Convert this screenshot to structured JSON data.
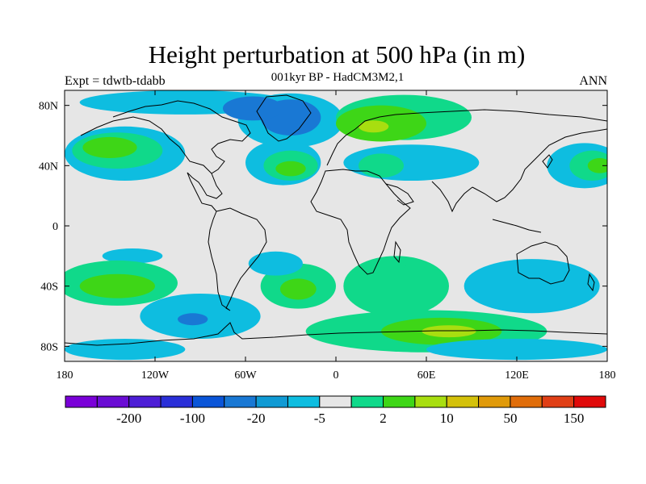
{
  "title": "Height perturbation at 500 hPa (in m)",
  "subtitle": "001kyr BP - HadCM3M2,1",
  "left_label": "Expt = tdwtb-tdabb",
  "right_label": "ANN",
  "map": {
    "projection": "cylindrical-equidistant",
    "lon_range": [
      -180,
      180
    ],
    "lat_range": [
      -90,
      90
    ],
    "lat_ticks": [
      {
        "value": 80,
        "label": "80N"
      },
      {
        "value": 40,
        "label": "40N"
      },
      {
        "value": 0,
        "label": "0"
      },
      {
        "value": -40,
        "label": "40S"
      },
      {
        "value": -80,
        "label": "80S"
      }
    ],
    "lon_ticks": [
      {
        "value": -180,
        "label": "180"
      },
      {
        "value": -120,
        "label": "120W"
      },
      {
        "value": -60,
        "label": "60W"
      },
      {
        "value": 0,
        "label": "0"
      },
      {
        "value": 60,
        "label": "60E"
      },
      {
        "value": 120,
        "label": "120E"
      },
      {
        "value": 180,
        "label": "180"
      }
    ],
    "background_color": "#e6e6e6"
  },
  "colorbar": {
    "colors": [
      "#7a00d8",
      "#6a0cd4",
      "#4d1ed6",
      "#2a2fd8",
      "#0a55d8",
      "#1978d4",
      "#109ad4",
      "#0ebde0",
      "#e6e6e6",
      "#10d98a",
      "#3ed617",
      "#a8de10",
      "#d4c10a",
      "#e09a0a",
      "#e06d0a",
      "#e03f16",
      "#e00a0a"
    ],
    "labels": [
      {
        "after_bin": 1,
        "text": "-200"
      },
      {
        "after_bin": 3,
        "text": "-100"
      },
      {
        "after_bin": 5,
        "text": "-20"
      },
      {
        "after_bin": 7,
        "text": "-5"
      },
      {
        "after_bin": 9,
        "text": "2"
      },
      {
        "after_bin": 11,
        "text": "10"
      },
      {
        "after_bin": 13,
        "text": "50"
      },
      {
        "after_bin": 15,
        "text": "150"
      }
    ]
  },
  "anomaly_regions": [
    {
      "label": "arctic-negative-band",
      "level": -5,
      "lon": -100,
      "lat": 82,
      "rlon": 70,
      "rlat": 8
    },
    {
      "label": "north-atlantic-negative",
      "level": -5,
      "lon": -30,
      "lat": 70,
      "rlon": 35,
      "rlat": 18
    },
    {
      "label": "north-atlantic-negative-core",
      "level": -20,
      "lon": -30,
      "lat": 72,
      "rlon": 20,
      "rlat": 12
    },
    {
      "label": "greenland-negative-core",
      "level": -20,
      "lon": -55,
      "lat": 78,
      "rlon": 20,
      "rlat": 8
    },
    {
      "label": "eurasia-positive",
      "level": 2,
      "lon": 45,
      "lat": 72,
      "rlon": 45,
      "rlat": 15
    },
    {
      "label": "eurasia-positive-core",
      "level": 10,
      "lon": 30,
      "lat": 68,
      "rlon": 30,
      "rlat": 12
    },
    {
      "label": "eurasia-positive-max",
      "level": 50,
      "lon": 25,
      "lat": 66,
      "rlon": 10,
      "rlat": 4
    },
    {
      "label": "north-pacific-negative",
      "level": -5,
      "lon": -140,
      "lat": 48,
      "rlon": 40,
      "rlat": 18
    },
    {
      "label": "north-pacific-positive",
      "level": 2,
      "lon": -145,
      "lat": 50,
      "rlon": 30,
      "rlat": 12
    },
    {
      "label": "north-pacific-positive-core",
      "level": 10,
      "lon": -150,
      "lat": 52,
      "rlon": 18,
      "rlat": 7
    },
    {
      "label": "mid-atlantic-negative",
      "level": -5,
      "lon": -35,
      "lat": 42,
      "rlon": 25,
      "rlat": 15
    },
    {
      "label": "mid-atlantic-positive",
      "level": 2,
      "lon": -30,
      "lat": 40,
      "rlon": 18,
      "rlat": 10
    },
    {
      "label": "mid-atlantic-positive-core",
      "level": 10,
      "lon": -30,
      "lat": 38,
      "rlon": 10,
      "rlat": 5
    },
    {
      "label": "asia-negative",
      "level": -5,
      "lon": 50,
      "lat": 42,
      "rlon": 45,
      "rlat": 12
    },
    {
      "label": "asia-positive",
      "level": 2,
      "lon": 30,
      "lat": 40,
      "rlon": 15,
      "rlat": 8
    },
    {
      "label": "west-pacific-negative",
      "level": -5,
      "lon": 165,
      "lat": 40,
      "rlon": 25,
      "rlat": 15
    },
    {
      "label": "west-pacific-positive",
      "level": 2,
      "lon": 170,
      "lat": 40,
      "rlon": 15,
      "rlat": 10
    },
    {
      "label": "west-pacific-positive-core",
      "level": 10,
      "lon": 175,
      "lat": 40,
      "rlon": 8,
      "rlat": 5
    },
    {
      "label": "tropical-pacific-negative",
      "level": -5,
      "lon": -135,
      "lat": -20,
      "rlon": 20,
      "rlat": 5
    },
    {
      "label": "south-pacific-positive",
      "level": 2,
      "lon": -145,
      "lat": -38,
      "rlon": 40,
      "rlat": 15
    },
    {
      "label": "south-pacific-positive-core",
      "level": 10,
      "lon": -145,
      "lat": -40,
      "rlon": 25,
      "rlat": 8
    },
    {
      "label": "south-pacific-negative",
      "level": -5,
      "lon": -90,
      "lat": -60,
      "rlon": 40,
      "rlat": 15
    },
    {
      "label": "south-pacific-negative-core",
      "level": -20,
      "lon": -95,
      "lat": -62,
      "rlon": 10,
      "rlat": 4
    },
    {
      "label": "south-atlantic-positive",
      "level": 2,
      "lon": -25,
      "lat": -40,
      "rlon": 25,
      "rlat": 15
    },
    {
      "label": "south-atlantic-positive-core",
      "level": 10,
      "lon": -25,
      "lat": -42,
      "rlon": 12,
      "rlat": 7
    },
    {
      "label": "south-atlantic-negative",
      "level": -5,
      "lon": -40,
      "lat": -25,
      "rlon": 18,
      "rlat": 8
    },
    {
      "label": "indian-ocean-negative",
      "level": -5,
      "lon": 40,
      "lat": -40,
      "rlon": 25,
      "rlat": 18
    },
    {
      "label": "indian-ocean-positive",
      "level": 2,
      "lon": 40,
      "lat": -40,
      "rlon": 35,
      "rlat": 20
    },
    {
      "label": "southern-ocean-positive",
      "level": 2,
      "lon": 60,
      "lat": -70,
      "rlon": 80,
      "rlat": 14
    },
    {
      "label": "southern-ocean-positive-core",
      "level": 10,
      "lon": 70,
      "lat": -70,
      "rlon": 40,
      "rlat": 9
    },
    {
      "label": "southern-ocean-positive-max",
      "level": 50,
      "lon": 75,
      "lat": -70,
      "rlon": 18,
      "rlat": 4
    },
    {
      "label": "australia-negative",
      "level": -5,
      "lon": 130,
      "lat": -40,
      "rlon": 45,
      "rlat": 18
    },
    {
      "label": "antarctic-negative",
      "level": -5,
      "lon": 120,
      "lat": -82,
      "rlon": 60,
      "rlat": 7
    },
    {
      "label": "antarctic-negative-west",
      "level": -5,
      "lon": -140,
      "lat": -82,
      "rlon": 40,
      "rlat": 7
    },
    {
      "label": "arabian-sea-positive",
      "level": 2,
      "lon": 55,
      "lat": -28,
      "rlon": 10,
      "rlat": 3
    }
  ]
}
